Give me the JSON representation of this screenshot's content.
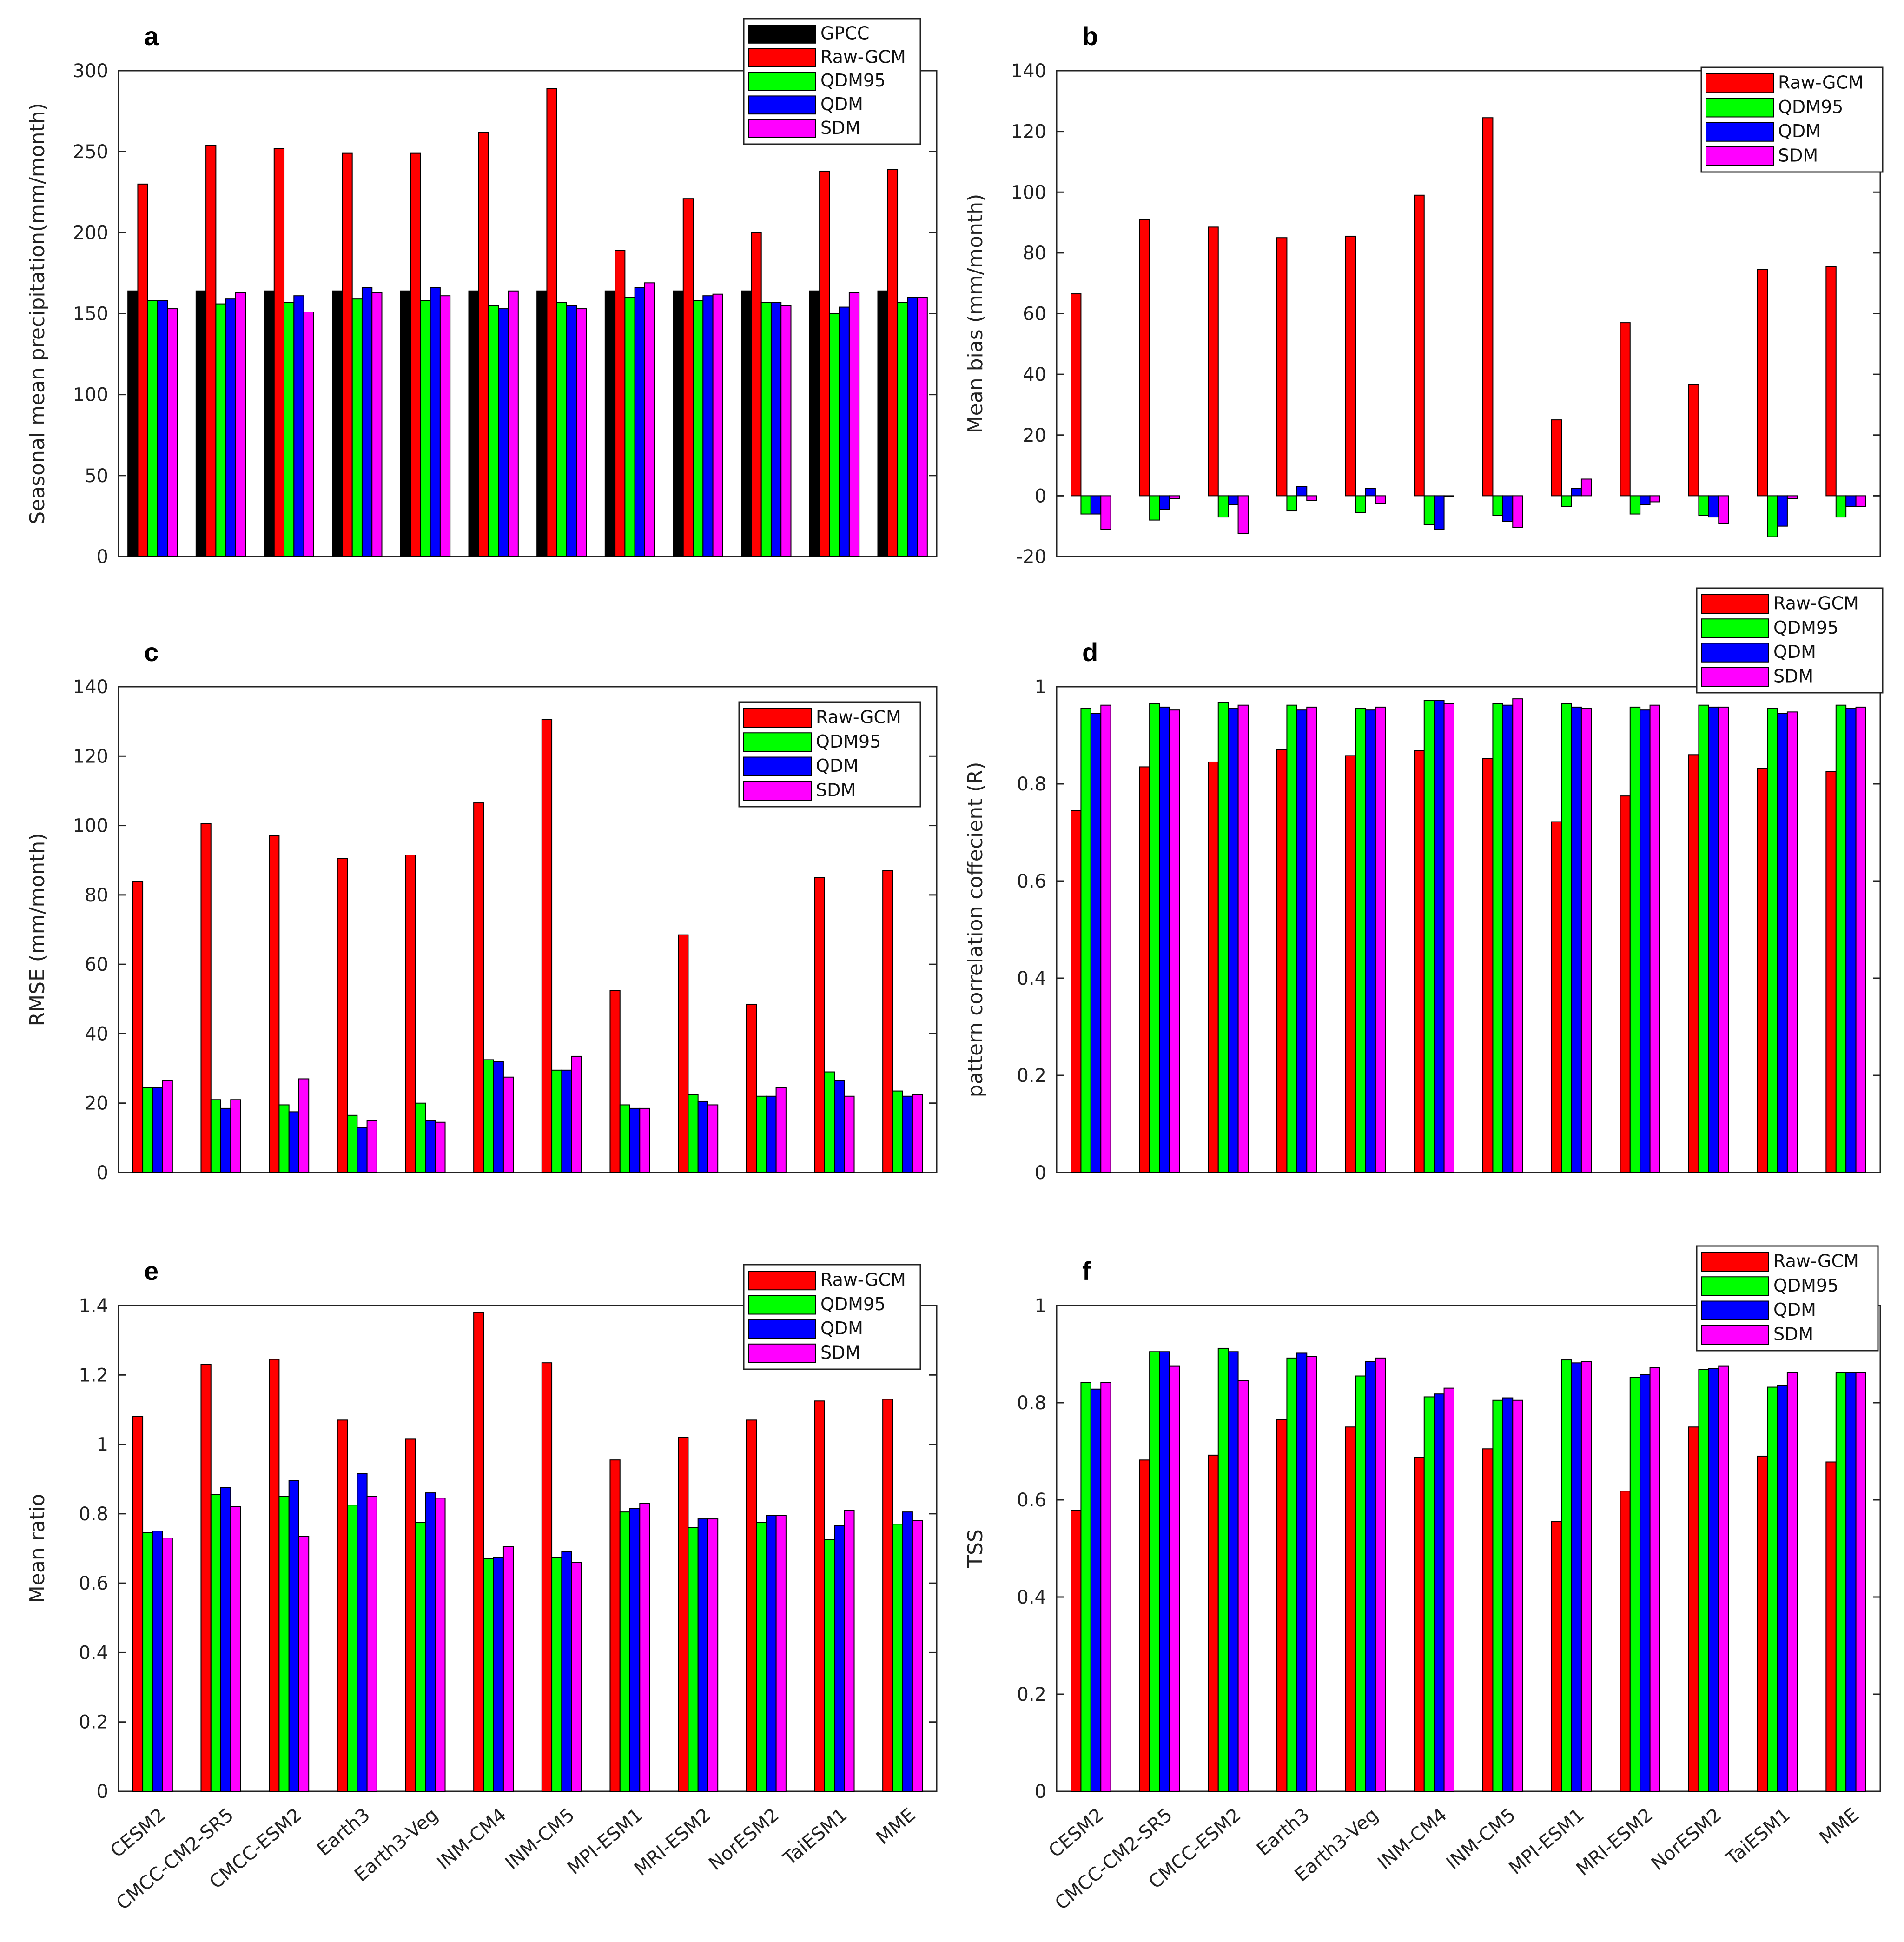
{
  "colors": {
    "GPCC": "#000000",
    "Raw-GCM": "#ff0000",
    "QDM95": "#00ff00",
    "QDM": "#0000ff",
    "SDM": "#ff00ff"
  },
  "chart_data": [
    {
      "type": "bar",
      "panel": "a",
      "ylabel": "Seasonal mean precipitation(mm/month)",
      "ylim": [
        0,
        300
      ],
      "yticks": [
        0,
        50,
        100,
        150,
        200,
        250,
        300
      ],
      "categories": [
        "CESM2",
        "CMCC-CM2-SR5",
        "CMCC-ESM2",
        "Earth3",
        "Earth3-Veg",
        "INM-CM4",
        "INM-CM5",
        "MPI-ESM1",
        "MRI-ESM2",
        "NorESM2",
        "TaiESM1",
        "MME"
      ],
      "series": [
        {
          "name": "GPCC",
          "values": [
            164,
            164,
            164,
            164,
            164,
            164,
            164,
            164,
            164,
            164,
            164,
            164
          ]
        },
        {
          "name": "Raw-GCM",
          "values": [
            230,
            254,
            252,
            249,
            249,
            262,
            289,
            189,
            221,
            200,
            238,
            239
          ]
        },
        {
          "name": "QDM95",
          "values": [
            158,
            156,
            157,
            159,
            158,
            155,
            157,
            160,
            158,
            157,
            150,
            157
          ]
        },
        {
          "name": "QDM",
          "values": [
            158,
            159,
            161,
            166,
            166,
            153,
            155,
            166,
            161,
            157,
            154,
            160
          ]
        },
        {
          "name": "SDM",
          "values": [
            153,
            163,
            151,
            163,
            161,
            164,
            153,
            169,
            162,
            155,
            163,
            160
          ]
        }
      ],
      "legend": "top-right"
    },
    {
      "type": "bar",
      "panel": "b",
      "ylabel": "Mean bias (mm/month)",
      "ylim": [
        -20,
        140
      ],
      "yticks": [
        -20,
        0,
        20,
        40,
        60,
        80,
        100,
        120,
        140
      ],
      "categories": [
        "CESM2",
        "CMCC-CM2-SR5",
        "CMCC-ESM2",
        "Earth3",
        "Earth3-Veg",
        "INM-CM4",
        "INM-CM5",
        "MPI-ESM1",
        "MRI-ESM2",
        "NorESM2",
        "TaiESM1",
        "MME"
      ],
      "series": [
        {
          "name": "Raw-GCM",
          "values": [
            66.5,
            91,
            88.5,
            85,
            85.5,
            99,
            124.5,
            25,
            57,
            36.5,
            74.5,
            75.5
          ]
        },
        {
          "name": "QDM95",
          "values": [
            -6,
            -8,
            -7,
            -5,
            -5.5,
            -9.5,
            -6.5,
            -3.5,
            -6,
            -6.5,
            -13.5,
            -7
          ]
        },
        {
          "name": "QDM",
          "values": [
            -6,
            -4.5,
            -3,
            3,
            2.5,
            -11,
            -8.5,
            2.5,
            -3,
            -7,
            -10,
            -3.5
          ]
        },
        {
          "name": "SDM",
          "values": [
            -11,
            -1,
            -12.5,
            -1.5,
            -2.5,
            0,
            -10.5,
            5.5,
            -2,
            -9,
            -1,
            -3.5
          ]
        }
      ],
      "legend": "top-right"
    },
    {
      "type": "bar",
      "panel": "c",
      "ylabel": "RMSE (mm/month)",
      "ylim": [
        0,
        140
      ],
      "yticks": [
        0,
        20,
        40,
        60,
        80,
        100,
        120,
        140
      ],
      "categories": [
        "CESM2",
        "CMCC-CM2-SR5",
        "CMCC-ESM2",
        "Earth3",
        "Earth3-Veg",
        "INM-CM4",
        "INM-CM5",
        "MPI-ESM1",
        "MRI-ESM2",
        "NorESM2",
        "TaiESM1",
        "MME"
      ],
      "series": [
        {
          "name": "Raw-GCM",
          "values": [
            84,
            100.5,
            97,
            90.5,
            91.5,
            106.5,
            130.5,
            52.5,
            68.5,
            48.5,
            85,
            87
          ]
        },
        {
          "name": "QDM95",
          "values": [
            24.5,
            21,
            19.5,
            16.5,
            20,
            32.5,
            29.5,
            19.5,
            22.5,
            22,
            29,
            23.5
          ]
        },
        {
          "name": "QDM",
          "values": [
            24.5,
            18.5,
            17.5,
            13,
            15,
            32,
            29.5,
            18.5,
            20.5,
            22,
            26.5,
            22
          ]
        },
        {
          "name": "SDM",
          "values": [
            26.5,
            21,
            27,
            15,
            14.5,
            27.5,
            33.5,
            18.5,
            19.5,
            24.5,
            22,
            22.5
          ]
        }
      ],
      "legend": "top-right"
    },
    {
      "type": "bar",
      "panel": "d",
      "ylabel": "pattern correlation coffecient (R)",
      "ylim": [
        0,
        1
      ],
      "yticks": [
        0,
        0.2,
        0.4,
        0.6,
        0.8,
        1
      ],
      "categories": [
        "CESM2",
        "CMCC-CM2-SR5",
        "CMCC-ESM2",
        "Earth3",
        "Earth3-Veg",
        "INM-CM4",
        "INM-CM5",
        "MPI-ESM1",
        "MRI-ESM2",
        "NorESM2",
        "TaiESM1",
        "MME"
      ],
      "series": [
        {
          "name": "Raw-GCM",
          "values": [
            0.745,
            0.835,
            0.845,
            0.87,
            0.858,
            0.868,
            0.852,
            0.722,
            0.775,
            0.86,
            0.832,
            0.825
          ]
        },
        {
          "name": "QDM95",
          "values": [
            0.955,
            0.965,
            0.968,
            0.962,
            0.955,
            0.972,
            0.965,
            0.965,
            0.958,
            0.962,
            0.955,
            0.962
          ]
        },
        {
          "name": "QDM",
          "values": [
            0.945,
            0.958,
            0.955,
            0.952,
            0.952,
            0.972,
            0.962,
            0.958,
            0.952,
            0.958,
            0.945,
            0.955
          ]
        },
        {
          "name": "SDM",
          "values": [
            0.962,
            0.952,
            0.962,
            0.958,
            0.958,
            0.965,
            0.975,
            0.955,
            0.962,
            0.958,
            0.948,
            0.958
          ]
        }
      ],
      "legend": "top-right"
    },
    {
      "type": "bar",
      "panel": "e",
      "ylabel": "Mean ratio",
      "ylim": [
        0,
        1.4
      ],
      "yticks": [
        0,
        0.2,
        0.4,
        0.6,
        0.8,
        1,
        1.2,
        1.4
      ],
      "categories": [
        "CESM2",
        "CMCC-CM2-SR5",
        "CMCC-ESM2",
        "Earth3",
        "Earth3-Veg",
        "INM-CM4",
        "INM-CM5",
        "MPI-ESM1",
        "MRI-ESM2",
        "NorESM2",
        "TaiESM1",
        "MME"
      ],
      "series": [
        {
          "name": "Raw-GCM",
          "values": [
            1.08,
            1.23,
            1.245,
            1.07,
            1.015,
            1.38,
            1.235,
            0.955,
            1.02,
            1.07,
            1.125,
            1.13
          ]
        },
        {
          "name": "QDM95",
          "values": [
            0.745,
            0.855,
            0.85,
            0.825,
            0.775,
            0.67,
            0.675,
            0.805,
            0.76,
            0.775,
            0.725,
            0.77
          ]
        },
        {
          "name": "QDM",
          "values": [
            0.75,
            0.875,
            0.895,
            0.915,
            0.86,
            0.675,
            0.69,
            0.815,
            0.785,
            0.795,
            0.765,
            0.805
          ]
        },
        {
          "name": "SDM",
          "values": [
            0.73,
            0.82,
            0.735,
            0.85,
            0.845,
            0.705,
            0.66,
            0.83,
            0.785,
            0.795,
            0.81,
            0.78
          ]
        }
      ],
      "legend": "top-right"
    },
    {
      "type": "bar",
      "panel": "f",
      "ylabel": "TSS",
      "ylim": [
        0,
        1
      ],
      "yticks": [
        0,
        0.2,
        0.4,
        0.6,
        0.8,
        1
      ],
      "categories": [
        "CESM2",
        "CMCC-CM2-SR5",
        "CMCC-ESM2",
        "Earth3",
        "Earth3-Veg",
        "INM-CM4",
        "INM-CM5",
        "MPI-ESM1",
        "MRI-ESM2",
        "NorESM2",
        "TaiESM1",
        "MME"
      ],
      "series": [
        {
          "name": "Raw-GCM",
          "values": [
            0.578,
            0.682,
            0.692,
            0.765,
            0.75,
            0.688,
            0.705,
            0.555,
            0.618,
            0.75,
            0.69,
            0.678
          ]
        },
        {
          "name": "QDM95",
          "values": [
            0.842,
            0.905,
            0.912,
            0.892,
            0.855,
            0.812,
            0.805,
            0.888,
            0.852,
            0.868,
            0.832,
            0.862
          ]
        },
        {
          "name": "QDM",
          "values": [
            0.828,
            0.905,
            0.905,
            0.902,
            0.885,
            0.818,
            0.81,
            0.882,
            0.858,
            0.87,
            0.835,
            0.862
          ]
        },
        {
          "name": "SDM",
          "values": [
            0.842,
            0.875,
            0.845,
            0.895,
            0.892,
            0.83,
            0.805,
            0.885,
            0.872,
            0.875,
            0.862,
            0.862
          ]
        }
      ],
      "legend": "top-right"
    }
  ]
}
